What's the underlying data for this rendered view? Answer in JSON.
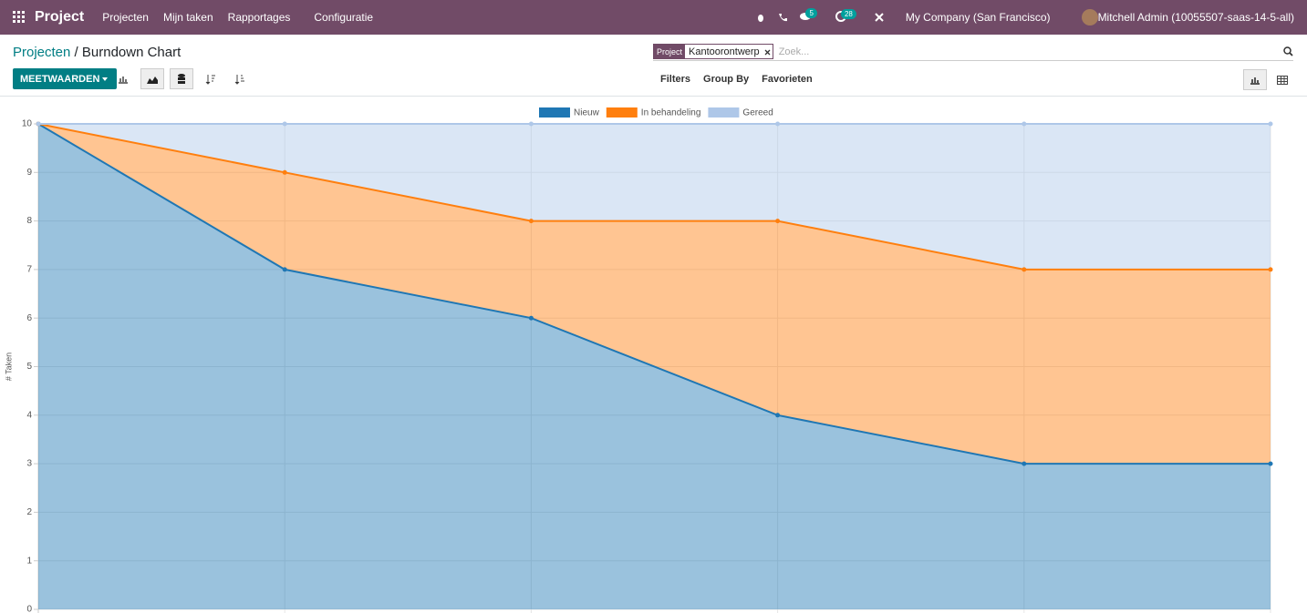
{
  "navbar": {
    "app": "Project",
    "menu": [
      "Projecten",
      "Mijn taken",
      "Rapportages",
      "Configuratie"
    ],
    "messages_badge": "5",
    "activities_badge": "28",
    "company": "My Company (San Francisco)",
    "user": "Mitchell Admin (10055507-saas-14-5-all)"
  },
  "control_panel": {
    "breadcrumb": [
      "Projecten",
      "Burndown Chart"
    ],
    "breadcrumb_separator": "/",
    "measures_button": "MEETWAARDEN",
    "search": {
      "facet_label": "Project",
      "facet_value": "Kantoorontwerp",
      "placeholder": "Zoek..."
    },
    "search_options": [
      "Filters",
      "Group By",
      "Favorieten"
    ]
  },
  "chart_data": {
    "type": "area",
    "stacked": true,
    "y_label": "# Taken",
    "categories": [
      null,
      null,
      null,
      null,
      null,
      null
    ],
    "series": [
      {
        "name": "Nieuw",
        "color": "#1f77b4",
        "values": [
          10,
          7,
          6,
          4,
          3,
          3
        ]
      },
      {
        "name": "In behandeling",
        "color": "#ff7f0e",
        "values": [
          0,
          2,
          2,
          4,
          4,
          4
        ]
      },
      {
        "name": "Gereed",
        "color": "#aec7e8",
        "values": [
          0,
          1,
          2,
          2,
          3,
          3
        ]
      }
    ],
    "ylim": [
      0,
      10
    ],
    "yticks": [
      0,
      1,
      2,
      3,
      4,
      5,
      6,
      7,
      8,
      9,
      10
    ],
    "grid": true,
    "legend": "top"
  }
}
